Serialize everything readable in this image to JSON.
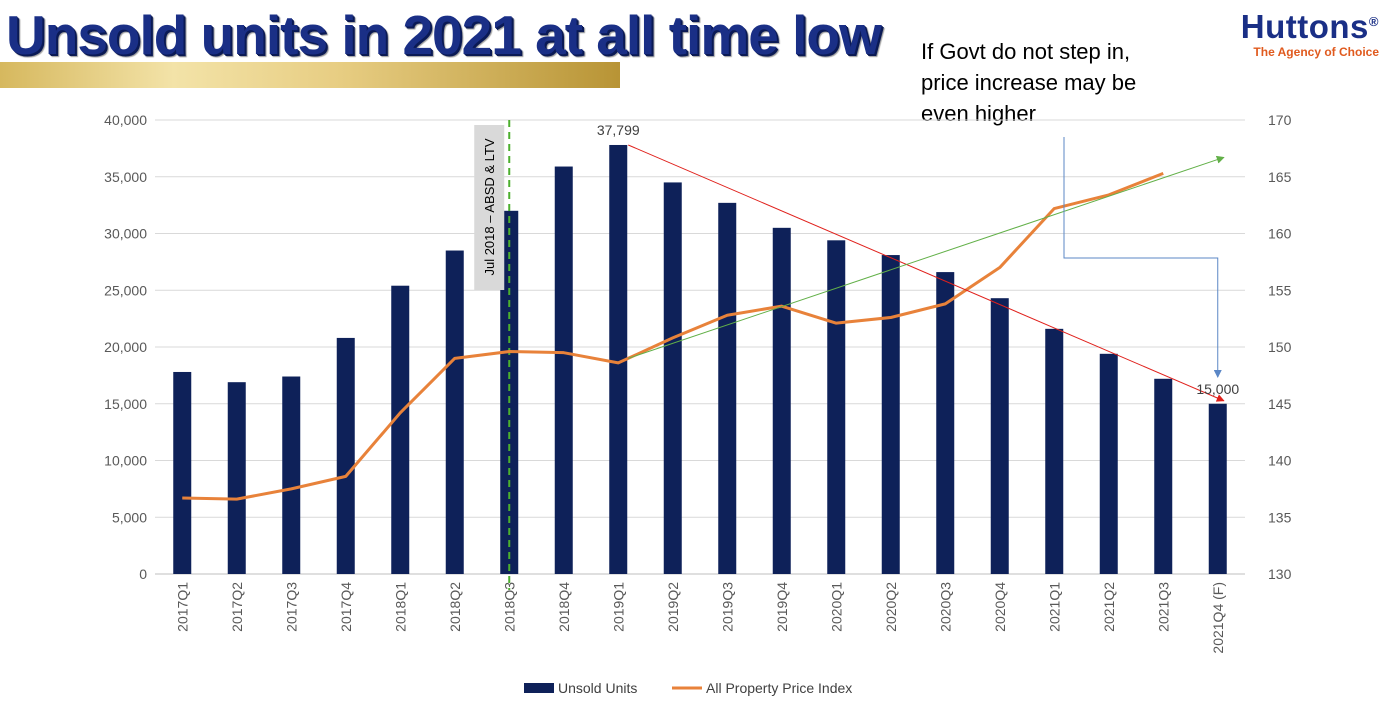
{
  "header": {
    "title": "Unsold units in 2021 at all time low",
    "logo_name": "Huttons",
    "logo_reg": "®",
    "logo_tagline": "The Agency of Choice"
  },
  "annotations": {
    "policy_label": "Jul 2018 – ABSD & LTV",
    "policy_category": "2018Q3",
    "note": "If Govt do not step in, price increase may be even higher",
    "peak_label": "37,799",
    "end_label": "15,000"
  },
  "colors": {
    "bars": "#0e2159",
    "price_line": "#e8823a",
    "trend_down": "#e0211c",
    "trend_up": "#62b048",
    "policy_line": "#4caf2e",
    "note_arrow": "#5b87c6",
    "grid": "#d9d9d9",
    "text": "#595959"
  },
  "chart_data": {
    "type": "bar",
    "categories": [
      "2017Q1",
      "2017Q2",
      "2017Q3",
      "2017Q4",
      "2018Q1",
      "2018Q2",
      "2018Q3",
      "2018Q4",
      "2019Q1",
      "2019Q2",
      "2019Q3",
      "2019Q4",
      "2020Q1",
      "2020Q2",
      "2020Q3",
      "2020Q4",
      "2021Q1",
      "2021Q2",
      "2021Q3",
      "2021Q4 (F)"
    ],
    "series": [
      {
        "name": "Unsold Units",
        "type": "bar",
        "axis": "left",
        "values": [
          17800,
          16900,
          17400,
          20800,
          25400,
          28500,
          32000,
          35900,
          37799,
          34500,
          32700,
          30500,
          29400,
          28100,
          26600,
          24300,
          21600,
          19400,
          17200,
          15000
        ]
      },
      {
        "name": "All Property Price Index",
        "type": "line",
        "axis": "right",
        "values": [
          136.7,
          136.6,
          137.5,
          138.6,
          144.2,
          149.0,
          149.6,
          149.5,
          148.6,
          150.8,
          152.8,
          153.6,
          152.1,
          152.6,
          153.8,
          157.0,
          162.2,
          163.4,
          165.3,
          null
        ]
      }
    ],
    "y_left": {
      "min": 0,
      "max": 40000,
      "ticks": [
        "0",
        "5,000",
        "10,000",
        "15,000",
        "20,000",
        "25,000",
        "30,000",
        "35,000",
        "40,000"
      ]
    },
    "y_right": {
      "min": 130,
      "max": 170,
      "ticks": [
        "130",
        "135",
        "140",
        "145",
        "150",
        "155",
        "160",
        "165",
        "170"
      ]
    },
    "trendlines": [
      {
        "name": "decline",
        "from": {
          "category": "2019Q1",
          "value": 37799,
          "axis": "left"
        },
        "to": {
          "category": "2021Q4 (F)",
          "value": 15000,
          "axis": "left"
        }
      },
      {
        "name": "rise",
        "from": {
          "category": "2019Q1",
          "value": 149.0,
          "axis": "right"
        },
        "to": {
          "category": "2021Q4 (F)",
          "value": 166.7,
          "axis": "right"
        }
      }
    ],
    "grid": true,
    "legend": "bottom"
  }
}
